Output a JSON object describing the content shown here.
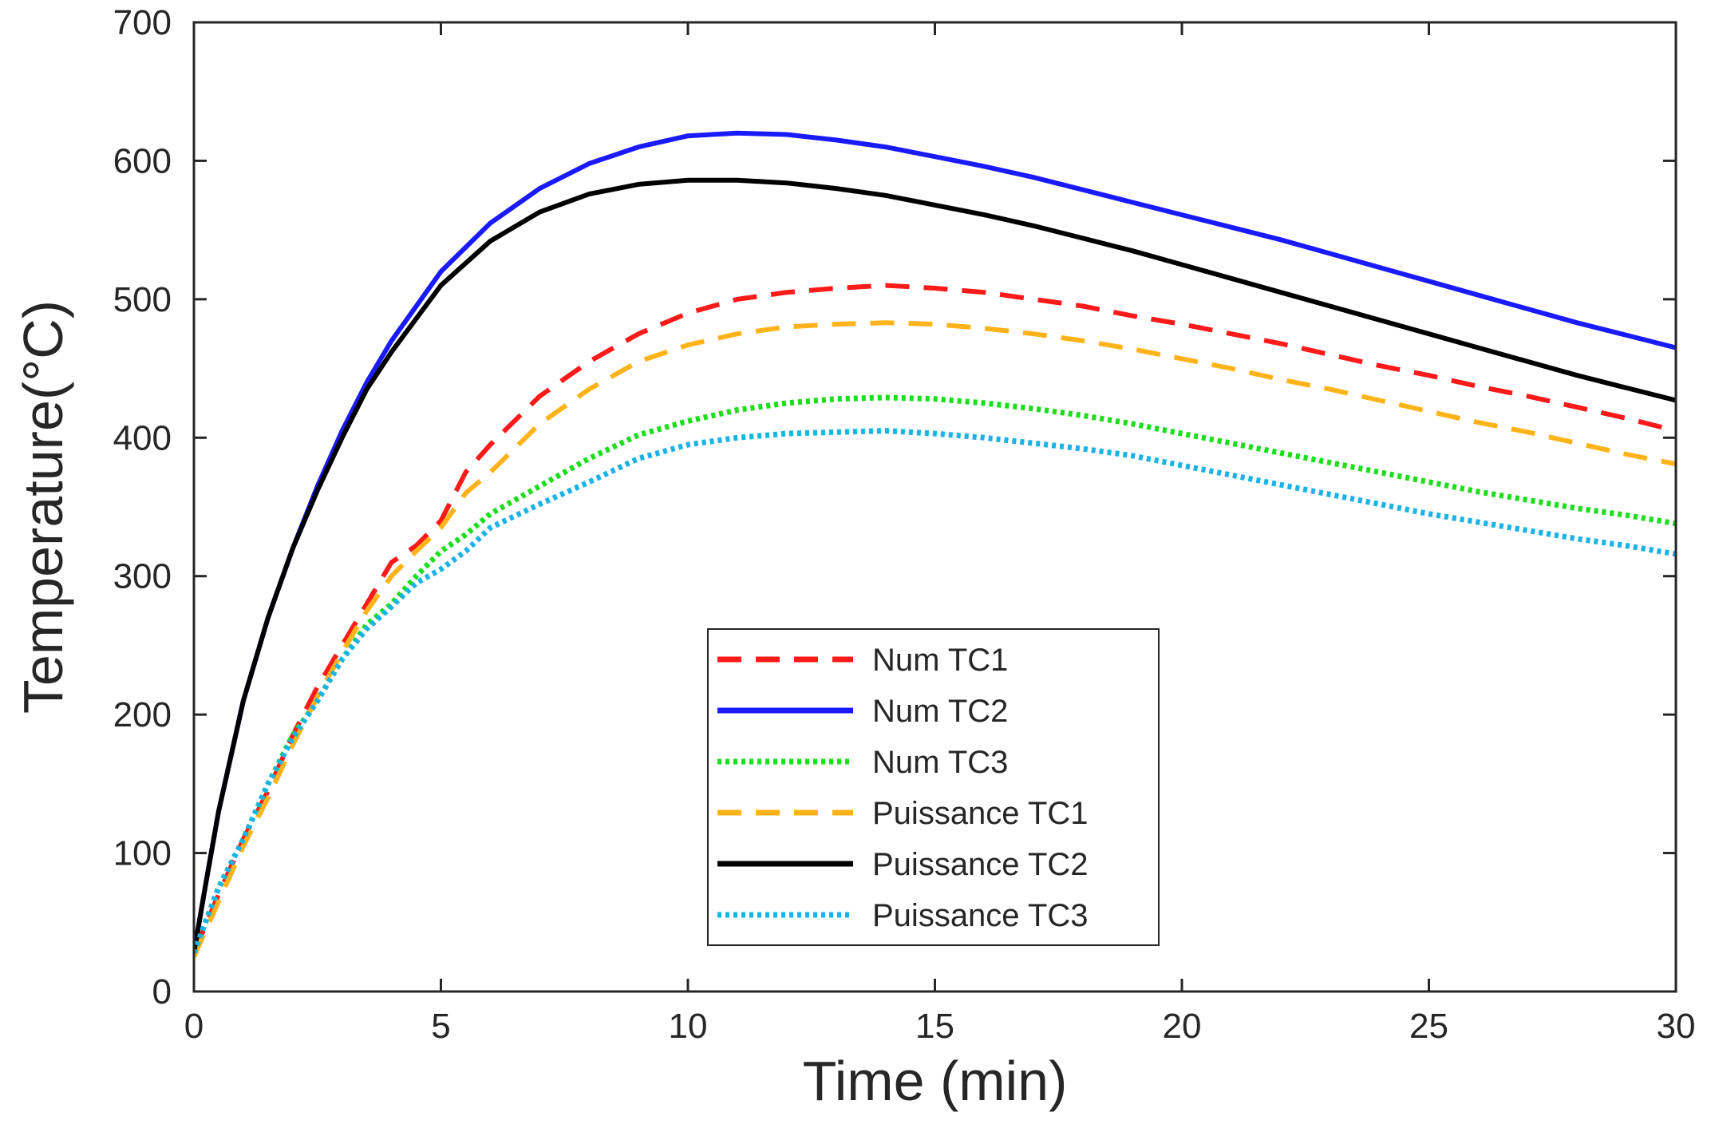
{
  "chart_data": {
    "type": "line",
    "title": "",
    "xlabel": "Time (min)",
    "ylabel": "Temperature(°C)",
    "xlim": [
      0,
      30
    ],
    "ylim": [
      0,
      700
    ],
    "xticks": [
      0,
      5,
      10,
      15,
      20,
      25,
      30
    ],
    "yticks": [
      0,
      100,
      200,
      300,
      400,
      500,
      600,
      700
    ],
    "grid": false,
    "legend_position": "bottom-center",
    "series": [
      {
        "name": "Num TC1",
        "color": "#ff1a1a",
        "style": "dashed",
        "x": [
          0,
          0.5,
          1,
          1.5,
          2,
          2.5,
          3,
          3.5,
          4,
          4.5,
          5,
          5.5,
          6,
          7,
          8,
          9,
          10,
          11,
          12,
          13,
          14,
          15,
          16,
          17,
          18,
          19,
          20,
          21,
          22,
          23,
          24,
          25,
          26,
          27,
          28,
          29,
          30
        ],
        "y": [
          28,
          70,
          110,
          145,
          185,
          220,
          250,
          280,
          310,
          322,
          340,
          375,
          395,
          430,
          455,
          475,
          490,
          500,
          505,
          508,
          510,
          508,
          505,
          500,
          495,
          488,
          482,
          475,
          468,
          460,
          452,
          445,
          437,
          430,
          422,
          414,
          405
        ]
      },
      {
        "name": "Num TC2",
        "color": "#1a1aff",
        "style": "solid",
        "x": [
          0,
          0.25,
          0.5,
          1,
          1.5,
          2,
          2.5,
          3,
          3.5,
          4,
          5,
          6,
          7,
          8,
          9,
          10,
          11,
          12,
          13,
          14,
          15,
          16,
          17,
          18,
          19,
          20,
          21,
          22,
          23,
          24,
          25,
          26,
          27,
          28,
          29,
          30
        ],
        "y": [
          28,
          80,
          130,
          210,
          270,
          320,
          365,
          405,
          440,
          470,
          520,
          555,
          580,
          598,
          610,
          618,
          620,
          619,
          615,
          610,
          603,
          596,
          588,
          579,
          570,
          561,
          552,
          543,
          533,
          523,
          513,
          503,
          493,
          483,
          474,
          465
        ]
      },
      {
        "name": "Num TC3",
        "color": "#1adf1a",
        "style": "dotted",
        "x": [
          0,
          0.5,
          1,
          1.5,
          2,
          2.5,
          3,
          3.5,
          4,
          4.5,
          5,
          5.5,
          6,
          7,
          8,
          9,
          10,
          11,
          12,
          13,
          14,
          15,
          16,
          17,
          18,
          19,
          20,
          21,
          22,
          23,
          24,
          25,
          26,
          27,
          28,
          29,
          30
        ],
        "y": [
          28,
          75,
          110,
          150,
          185,
          210,
          240,
          265,
          280,
          300,
          318,
          330,
          345,
          365,
          385,
          402,
          412,
          420,
          425,
          428,
          429,
          428,
          425,
          421,
          416,
          410,
          403,
          396,
          389,
          382,
          375,
          368,
          361,
          355,
          349,
          344,
          338
        ]
      },
      {
        "name": "Puissance TC1",
        "color": "#ffb31a",
        "style": "dashed",
        "x": [
          0,
          0.5,
          1,
          1.5,
          2,
          2.5,
          3,
          3.5,
          4,
          4.5,
          5,
          5.5,
          6,
          7,
          8,
          9,
          10,
          11,
          12,
          13,
          14,
          15,
          16,
          17,
          18,
          19,
          20,
          21,
          22,
          23,
          24,
          25,
          26,
          27,
          28,
          29,
          30
        ],
        "y": [
          25,
          65,
          105,
          140,
          178,
          213,
          245,
          275,
          300,
          318,
          335,
          360,
          375,
          410,
          435,
          455,
          467,
          475,
          480,
          482,
          483,
          482,
          479,
          475,
          470,
          464,
          457,
          450,
          442,
          435,
          427,
          419,
          411,
          404,
          396,
          388,
          381
        ]
      },
      {
        "name": "Puissance TC2",
        "color": "#000000",
        "style": "solid",
        "x": [
          0,
          0.25,
          0.5,
          1,
          1.5,
          2,
          2.5,
          3,
          3.5,
          4,
          5,
          6,
          7,
          8,
          9,
          10,
          11,
          12,
          13,
          14,
          15,
          16,
          17,
          18,
          19,
          20,
          21,
          22,
          23,
          24,
          25,
          26,
          27,
          28,
          29,
          30
        ],
        "y": [
          28,
          80,
          130,
          210,
          270,
          320,
          362,
          400,
          435,
          462,
          510,
          542,
          563,
          576,
          583,
          586,
          586,
          584,
          580,
          575,
          568,
          561,
          553,
          544,
          535,
          525,
          515,
          505,
          495,
          485,
          475,
          465,
          455,
          445,
          436,
          427
        ]
      },
      {
        "name": "Puissance TC3",
        "color": "#1ab3e6",
        "style": "dotted",
        "x": [
          0,
          0.5,
          1,
          1.5,
          2,
          2.5,
          3,
          3.5,
          4,
          4.5,
          5,
          5.5,
          6,
          7,
          8,
          9,
          10,
          11,
          12,
          13,
          14,
          15,
          16,
          17,
          18,
          19,
          20,
          21,
          22,
          23,
          24,
          25,
          26,
          27,
          28,
          29,
          30
        ],
        "y": [
          28,
          75,
          110,
          150,
          183,
          210,
          240,
          262,
          278,
          295,
          305,
          318,
          335,
          352,
          368,
          385,
          395,
          400,
          403,
          404,
          405,
          403,
          400,
          396,
          392,
          387,
          380,
          373,
          366,
          359,
          352,
          345,
          339,
          333,
          327,
          322,
          316
        ]
      }
    ]
  }
}
